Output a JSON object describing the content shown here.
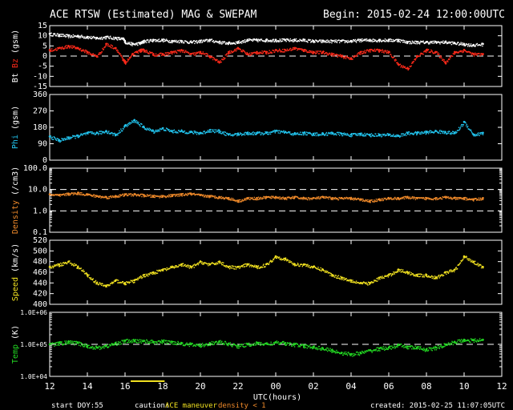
{
  "header": {
    "title": "ACE RTSW (Estimated) MAG & SWEPAM",
    "begin": "Begin: 2015-02-24 12:00:00UTC"
  },
  "footer": {
    "start_doy_label": "start DOY:",
    "start_doy_value": "55",
    "caution_label": "caution:",
    "caution_maneuver": "ACE maneuver",
    "caution_density": "density < 1",
    "created": "created: 2015-02-25 11:07:05UTC"
  },
  "colors": {
    "bt": "#ffffff",
    "bz": "#ff2a1a",
    "phi": "#22c4ee",
    "density": "#f08a2a",
    "speed": "#f0e020",
    "temp": "#22d822",
    "maneuver": "#f0e020"
  },
  "chart_data": [
    {
      "type": "scatter",
      "id": "mag",
      "ylabel_parts": [
        "Bt",
        "Bz",
        "(gsm)"
      ],
      "ylim": [
        -15,
        15
      ],
      "yticks": [
        "15",
        "10",
        "5",
        "0",
        "-5",
        "-10",
        "-15"
      ],
      "dashed_at": [
        0
      ],
      "x_hours": [
        0,
        0.5,
        1,
        1.5,
        2,
        2.5,
        3,
        3.5,
        3.9,
        4,
        4.4,
        4.8,
        5,
        5.5,
        6,
        6.5,
        7,
        7.5,
        8,
        8.5,
        9,
        9.5,
        10,
        10.5,
        11,
        11.5,
        12,
        12.5,
        13,
        13.5,
        14,
        14.5,
        15,
        15.5,
        16,
        16.5,
        17,
        17.5,
        18,
        18.5,
        19,
        19.5,
        20,
        20.5,
        21,
        21.5,
        22,
        22.5,
        23
      ],
      "series": [
        {
          "name": "Bt",
          "values": [
            11,
            10.5,
            10,
            10,
            9.5,
            9,
            9.5,
            9,
            8.5,
            7,
            6,
            6.5,
            7.5,
            8,
            8,
            7.5,
            7.5,
            7,
            7.5,
            8,
            7,
            6.5,
            7,
            8,
            8,
            8,
            8,
            8,
            8,
            8,
            7.5,
            7.5,
            7.5,
            7.5,
            7.5,
            8,
            8,
            8,
            8,
            8,
            7,
            7,
            7,
            7,
            7,
            6.5,
            6,
            5.5,
            6
          ]
        },
        {
          "name": "Bz",
          "values": [
            3,
            4,
            5,
            4,
            2,
            0,
            6,
            4,
            -2,
            -3,
            1,
            3,
            3,
            1,
            1,
            2,
            3,
            1,
            2,
            0,
            -3,
            2,
            4,
            1,
            2,
            2,
            3,
            3,
            4,
            3,
            2,
            2,
            1,
            0,
            -1,
            2,
            3,
            3,
            2,
            -4,
            -6,
            0,
            3,
            2,
            -3,
            2,
            3,
            1,
            1
          ]
        }
      ]
    },
    {
      "type": "scatter",
      "id": "phi",
      "ylabel_parts": [
        "Phi",
        "(gsm)"
      ],
      "ylim": [
        0,
        360
      ],
      "yticks": [
        "360",
        "270",
        "180",
        "90",
        "0"
      ],
      "x_hours": [
        0,
        0.5,
        1,
        1.5,
        2,
        2.5,
        3,
        3.5,
        4,
        4.5,
        5,
        5.5,
        6,
        6.5,
        7,
        7.5,
        8,
        8.5,
        9,
        9.5,
        10,
        10.5,
        11,
        11.5,
        12,
        12.5,
        13,
        13.5,
        14,
        14.5,
        15,
        15.5,
        16,
        16.5,
        17,
        17.5,
        18,
        18.5,
        19,
        19.5,
        20,
        20.5,
        21,
        21.5,
        22,
        22.5,
        23
      ],
      "series": [
        {
          "name": "Phi",
          "values": [
            130,
            110,
            125,
            135,
            150,
            150,
            160,
            140,
            190,
            220,
            180,
            160,
            175,
            160,
            160,
            155,
            150,
            165,
            160,
            140,
            145,
            150,
            150,
            150,
            160,
            155,
            145,
            150,
            145,
            145,
            150,
            145,
            140,
            145,
            140,
            140,
            140,
            135,
            150,
            150,
            155,
            160,
            155,
            150,
            210,
            140,
            150
          ]
        }
      ]
    },
    {
      "type": "scatter",
      "id": "density",
      "ylabel_parts": [
        "Density",
        "(/cm3)"
      ],
      "log": true,
      "ylim": [
        0.1,
        100
      ],
      "yticks": [
        "100.0",
        "10.0",
        "1.0",
        "0.1"
      ],
      "dashed_at": [
        10,
        1
      ],
      "x_hours": [
        0,
        0.5,
        1,
        1.5,
        2,
        2.5,
        3,
        3.5,
        4,
        4.5,
        5,
        5.5,
        6,
        6.5,
        7,
        7.5,
        8,
        8.5,
        9,
        9.5,
        10,
        10.5,
        11,
        11.5,
        12,
        12.5,
        13,
        13.5,
        14,
        14.5,
        15,
        15.5,
        16,
        16.5,
        17,
        17.5,
        18,
        18.5,
        19,
        19.5,
        20,
        20.5,
        21,
        21.5,
        22,
        22.5,
        23
      ],
      "series": [
        {
          "name": "Density",
          "values": [
            6,
            5.5,
            6.5,
            7,
            6,
            5,
            4.5,
            5,
            6,
            6,
            5.5,
            5,
            5,
            5.5,
            6,
            6.5,
            5.5,
            5,
            4.5,
            4,
            3,
            4,
            4,
            4.5,
            4.5,
            4,
            4.5,
            4,
            4,
            4.5,
            4,
            4,
            4,
            3.5,
            3,
            3.5,
            4,
            4,
            4.5,
            4,
            4,
            4,
            4.5,
            4,
            4,
            3.5,
            4
          ]
        }
      ]
    },
    {
      "type": "scatter",
      "id": "speed",
      "ylabel_parts": [
        "Speed",
        "(km/s)"
      ],
      "ylim": [
        400,
        520
      ],
      "yticks": [
        "520",
        "500",
        "480",
        "460",
        "440",
        "420",
        "400"
      ],
      "x_hours": [
        0,
        0.5,
        1,
        1.5,
        2,
        2.5,
        3,
        3.5,
        4,
        4.5,
        5,
        5.5,
        6,
        6.5,
        7,
        7.5,
        8,
        8.5,
        9,
        9.5,
        10,
        10.5,
        11,
        11.5,
        12,
        12.5,
        13,
        13.5,
        14,
        14.5,
        15,
        15.5,
        16,
        16.5,
        17,
        17.5,
        18,
        18.5,
        19,
        19.5,
        20,
        20.5,
        21,
        21.5,
        22,
        22.5,
        23
      ],
      "series": [
        {
          "name": "Speed",
          "values": [
            470,
            475,
            480,
            470,
            455,
            440,
            435,
            445,
            440,
            445,
            455,
            460,
            465,
            470,
            475,
            470,
            480,
            475,
            480,
            470,
            470,
            475,
            470,
            475,
            490,
            485,
            475,
            475,
            470,
            465,
            455,
            450,
            445,
            440,
            440,
            450,
            455,
            465,
            460,
            455,
            455,
            450,
            460,
            465,
            490,
            480,
            470
          ]
        }
      ]
    },
    {
      "type": "scatter",
      "id": "temp",
      "ylabel_parts": [
        "Temp",
        "(K)"
      ],
      "log": true,
      "ylim": [
        10000,
        1000000
      ],
      "yticks": [
        "1.0E+06",
        "1.0E+05",
        "1.0E+04"
      ],
      "dashed_at": [
        100000
      ],
      "x_hours": [
        0,
        0.5,
        1,
        1.5,
        2,
        2.5,
        3,
        3.5,
        4,
        4.5,
        5,
        5.5,
        6,
        6.5,
        7,
        7.5,
        8,
        8.5,
        9,
        9.5,
        10,
        10.5,
        11,
        11.5,
        12,
        12.5,
        13,
        13.5,
        14,
        14.5,
        15,
        15.5,
        16,
        16.5,
        17,
        17.5,
        18,
        18.5,
        19,
        19.5,
        20,
        20.5,
        21,
        21.5,
        22,
        22.5,
        23
      ],
      "series": [
        {
          "name": "Temp",
          "values": [
            100000,
            110000,
            120000,
            110000,
            90000,
            80000,
            90000,
            110000,
            130000,
            130000,
            130000,
            120000,
            125000,
            120000,
            110000,
            100000,
            95000,
            110000,
            120000,
            105000,
            90000,
            100000,
            110000,
            105000,
            115000,
            110000,
            100000,
            90000,
            85000,
            75000,
            65000,
            55000,
            50000,
            55000,
            65000,
            75000,
            80000,
            95000,
            85000,
            80000,
            70000,
            80000,
            100000,
            120000,
            140000,
            135000,
            140000
          ]
        }
      ]
    }
  ],
  "x_axis": {
    "xlabel": "UTC(hours)",
    "tick_labels": [
      "12",
      "14",
      "16",
      "18",
      "20",
      "22",
      "00",
      "02",
      "04",
      "06",
      "08",
      "10",
      "12"
    ],
    "range_hours": [
      0,
      24
    ],
    "maneuver_hours": [
      4.3,
      6.1
    ]
  }
}
